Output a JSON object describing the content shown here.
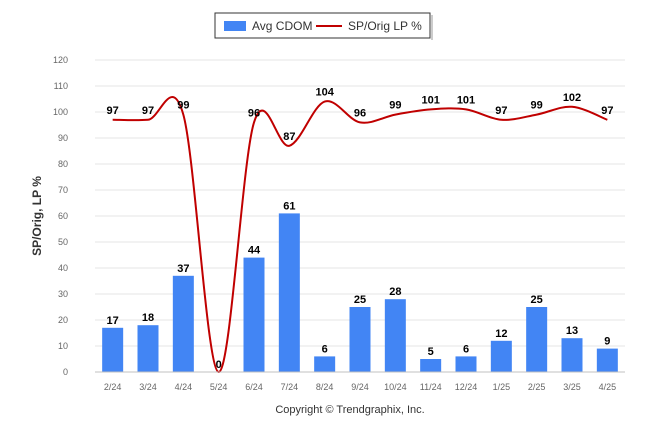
{
  "chart_data": {
    "type": "bar",
    "categories": [
      "2/24",
      "3/24",
      "4/24",
      "5/24",
      "6/24",
      "7/24",
      "8/24",
      "9/24",
      "10/24",
      "11/24",
      "12/24",
      "1/25",
      "2/25",
      "3/25",
      "4/25"
    ],
    "series": [
      {
        "name": "Avg CDOM",
        "type": "bar",
        "color": "#4285f4",
        "values": [
          17,
          18,
          37,
          0,
          44,
          61,
          6,
          25,
          28,
          5,
          6,
          12,
          25,
          13,
          9
        ]
      },
      {
        "name": "SP/Orig LP %",
        "type": "line",
        "color": "#c00000",
        "values": [
          97,
          97,
          99,
          0,
          96,
          87,
          104,
          96,
          99,
          101,
          101,
          97,
          99,
          102,
          97
        ]
      }
    ],
    "ylabel": "SP/Orig, LP %",
    "xlabel": "",
    "ylim": [
      0,
      120
    ],
    "yticks": [
      0,
      10,
      20,
      30,
      40,
      50,
      60,
      70,
      80,
      90,
      100,
      110,
      120
    ],
    "grid": true,
    "legend": "top-center"
  },
  "footer": {
    "copyright": "Copyright © Trendgraphix, Inc."
  }
}
